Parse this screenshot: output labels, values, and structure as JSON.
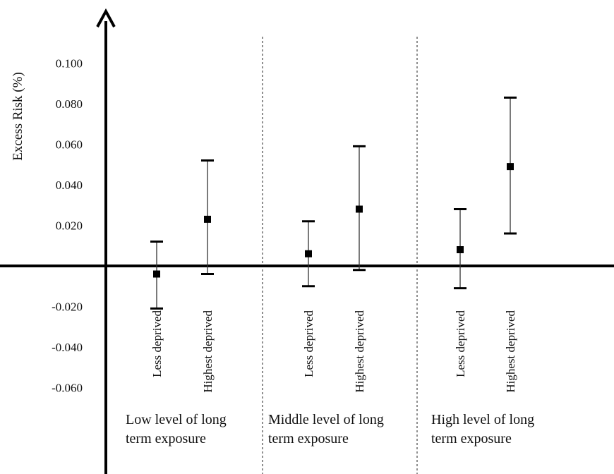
{
  "chart_data": {
    "type": "scatter",
    "title": "",
    "xlabel": "",
    "ylabel": "Excess Risk (%)",
    "ylim": [
      -0.08,
      0.12
    ],
    "yticks": [
      "0.100",
      "0.080",
      "0.060",
      "0.040",
      "0.020",
      "-0.020",
      "-0.040",
      "-0.060"
    ],
    "ytick_values": [
      0.1,
      0.08,
      0.06,
      0.04,
      0.02,
      -0.02,
      -0.04,
      -0.06
    ],
    "grid": false,
    "legend": "none",
    "groups": [
      {
        "label_line1": "Low level of long",
        "label_line2": "term exposure",
        "points": [
          {
            "category": "Less deprived",
            "estimate": -0.004,
            "lower": -0.021,
            "upper": 0.012
          },
          {
            "category": "Highest deprived",
            "estimate": 0.023,
            "lower": -0.004,
            "upper": 0.052
          }
        ]
      },
      {
        "label_line1": "Middle level of long",
        "label_line2": "term exposure",
        "points": [
          {
            "category": "Less deprived",
            "estimate": 0.006,
            "lower": -0.01,
            "upper": 0.022
          },
          {
            "category": "Highest deprived",
            "estimate": 0.028,
            "lower": -0.002,
            "upper": 0.059
          }
        ]
      },
      {
        "label_line1": "High level of long",
        "label_line2": "term exposure",
        "points": [
          {
            "category": "Less deprived",
            "estimate": 0.008,
            "lower": -0.011,
            "upper": 0.028
          },
          {
            "category": "Highest deprived",
            "estimate": 0.049,
            "lower": 0.016,
            "upper": 0.083
          }
        ]
      }
    ]
  }
}
